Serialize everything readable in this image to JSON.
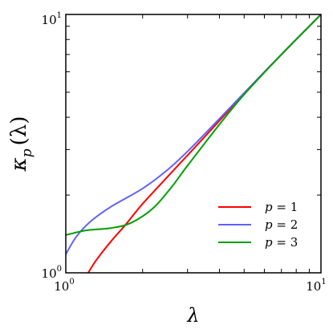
{
  "chart_data": {
    "type": "line",
    "x_scale": "log",
    "y_scale": "log",
    "xlim": [
      1,
      10
    ],
    "ylim": [
      1,
      10
    ],
    "grid": false,
    "legend_position": "bottom-right",
    "xlabel": "λ",
    "ylabel": "κ",
    "ylabel_sub": "p",
    "ylabel_suffix": "(λ)",
    "x_ticks": [
      {
        "base": "10",
        "exp": "0"
      },
      {
        "base": "10",
        "exp": "1"
      }
    ],
    "y_ticks": [
      {
        "base": "10",
        "exp": "0"
      },
      {
        "base": "10",
        "exp": "1"
      }
    ],
    "series": [
      {
        "name": "p = 1",
        "var": "p",
        "eq": " = 1",
        "color": "#ff0000",
        "points": [
          [
            1.15,
            0.9
          ],
          [
            1.3,
            1.1
          ],
          [
            1.5,
            1.32
          ],
          [
            1.7,
            1.52
          ],
          [
            2.0,
            1.85
          ],
          [
            2.5,
            2.35
          ],
          [
            3.0,
            2.85
          ],
          [
            4.0,
            3.88
          ],
          [
            5.0,
            4.95
          ],
          [
            7.0,
            7.0
          ],
          [
            10.0,
            10.0
          ]
        ]
      },
      {
        "name": "p = 2",
        "var": "p",
        "eq": " = 2",
        "color": "#6060ff",
        "points": [
          [
            1.0,
            1.18
          ],
          [
            1.1,
            1.38
          ],
          [
            1.25,
            1.58
          ],
          [
            1.5,
            1.8
          ],
          [
            2.0,
            2.12
          ],
          [
            2.5,
            2.5
          ],
          [
            3.0,
            2.95
          ],
          [
            4.0,
            3.95
          ],
          [
            5.0,
            4.97
          ],
          [
            7.0,
            7.0
          ],
          [
            10.0,
            10.0
          ]
        ]
      },
      {
        "name": "p = 3",
        "var": "p",
        "eq": " = 3",
        "color": "#00a000",
        "points": [
          [
            1.0,
            1.4
          ],
          [
            1.2,
            1.46
          ],
          [
            1.5,
            1.49
          ],
          [
            1.8,
            1.56
          ],
          [
            2.2,
            1.78
          ],
          [
            2.6,
            2.15
          ],
          [
            3.0,
            2.6
          ],
          [
            4.0,
            3.75
          ],
          [
            5.0,
            4.9
          ],
          [
            7.0,
            7.0
          ],
          [
            10.0,
            10.0
          ]
        ]
      }
    ]
  }
}
